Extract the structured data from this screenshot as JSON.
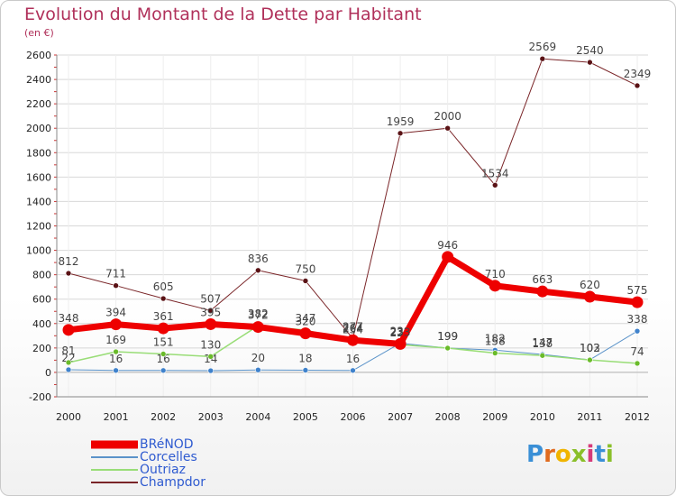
{
  "header": {
    "title": "Evolution du Montant de la Dette par Habitant",
    "subtitle": "(en €)"
  },
  "colors": {
    "title": "#b0305a",
    "legend_text": "#2f5bd0",
    "grid": "#d8d8d8",
    "axis_text": "#222222"
  },
  "brand": {
    "letters": [
      "P",
      "r",
      "o",
      "x",
      "i",
      "t",
      "i"
    ],
    "colors": [
      "#3a8fd6",
      "#e06b1f",
      "#f0b400",
      "#8abf2a",
      "#d63a7a",
      "#3a8fd6",
      "#8abf2a"
    ]
  },
  "chart_data": {
    "type": "line",
    "x": [
      2000,
      2001,
      2002,
      2003,
      2004,
      2005,
      2006,
      2007,
      2008,
      2009,
      2010,
      2011,
      2012
    ],
    "ylim": [
      -200,
      2600
    ],
    "yticks": [
      -200,
      0,
      200,
      400,
      600,
      800,
      1000,
      1200,
      1400,
      1600,
      1800,
      2000,
      2200,
      2400,
      2600
    ],
    "grid": true,
    "legend_position": "bottom-left",
    "series": [
      {
        "name": "Champdor",
        "color": "#7a2528",
        "marker": "#5a1215",
        "width": 1,
        "values": [
          812,
          711,
          605,
          507,
          836,
          750,
          277,
          1959,
          2000,
          1534,
          2569,
          2540,
          2349
        ]
      },
      {
        "name": "Corcelles",
        "color": "#5b93c9",
        "marker": "#3f82cc",
        "width": 1,
        "values": [
          22,
          16,
          16,
          14,
          20,
          18,
          16,
          239,
          199,
          182,
          147,
          103,
          338
        ]
      },
      {
        "name": "Outriaz",
        "color": "#99dd77",
        "marker": "#6abb2a",
        "width": 1.5,
        "values": [
          81,
          169,
          151,
          130,
          382,
          347,
          254,
          227,
          199,
          158,
          138,
          102,
          74
        ]
      },
      {
        "name": "BRéNOD",
        "color": "#ee0000",
        "marker": "#ee0000",
        "width": 7,
        "values": [
          348,
          394,
          361,
          395,
          372,
          320,
          264,
          233,
          946,
          710,
          663,
          620,
          575
        ]
      }
    ],
    "legend": [
      "BRéNOD",
      "Corcelles",
      "Outriaz",
      "Champdor"
    ]
  }
}
